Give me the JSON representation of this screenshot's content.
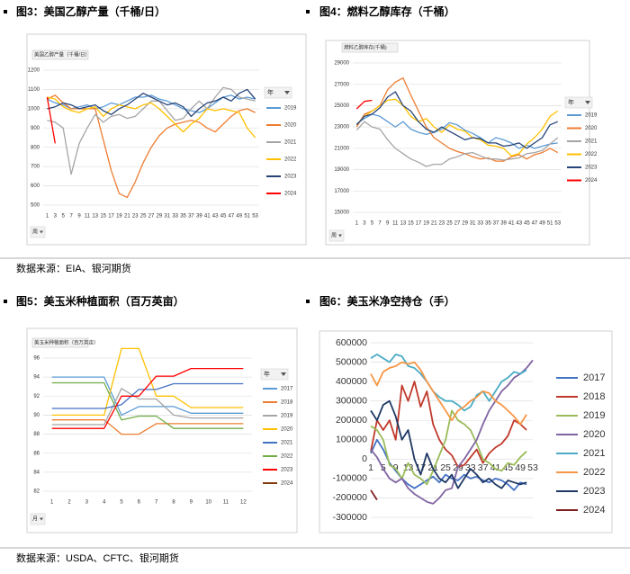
{
  "sources": [
    "数据来源：EIA、银河期货",
    "数据来源：USDA、CFTC、银河期货"
  ],
  "chart_data": [
    {
      "type": "line",
      "title": "图3：美国乙醇产量（千桶/日）",
      "subtitle": "美国乙醇产量（千桶/日）",
      "legend_title": "年",
      "filter_label": "周",
      "grid": true,
      "x": [
        1,
        3,
        5,
        7,
        9,
        11,
        13,
        15,
        17,
        19,
        21,
        23,
        25,
        27,
        29,
        31,
        33,
        35,
        37,
        39,
        41,
        43,
        45,
        47,
        49,
        51,
        53
      ],
      "xlim": [
        0,
        54
      ],
      "xticks": [
        1,
        3,
        5,
        7,
        9,
        11,
        13,
        15,
        17,
        19,
        21,
        23,
        25,
        27,
        29,
        31,
        33,
        35,
        37,
        39,
        41,
        43,
        45,
        47,
        49,
        51,
        53
      ],
      "ylim": [
        500,
        1200
      ],
      "yticks": [
        500,
        600,
        700,
        800,
        900,
        1000,
        1100,
        1200
      ],
      "series": [
        {
          "name": "2019",
          "color": "#5b9bd5",
          "values": [
            1050,
            1030,
            1020,
            1000,
            1010,
            1020,
            1000,
            1010,
            1030,
            1020,
            1040,
            1060,
            1060,
            1070,
            1050,
            1040,
            1020,
            1000,
            990,
            980,
            1000,
            1030,
            1060,
            1070,
            1050,
            1060,
            1050
          ]
        },
        {
          "name": "2020",
          "color": "#ed7d31",
          "values": [
            1050,
            1070,
            1030,
            1000,
            1000,
            1000,
            1000,
            840,
            680,
            560,
            540,
            620,
            720,
            800,
            860,
            900,
            920,
            930,
            940,
            930,
            900,
            880,
            920,
            960,
            990,
            1000,
            980
          ]
        },
        {
          "name": "2021",
          "color": "#a5a5a5",
          "values": [
            940,
            930,
            900,
            660,
            820,
            900,
            970,
            930,
            960,
            970,
            950,
            960,
            1000,
            1040,
            1040,
            990,
            940,
            950,
            1000,
            1040,
            1000,
            1060,
            1110,
            1100,
            1060,
            1050,
            1040
          ]
        },
        {
          "name": "2022",
          "color": "#ffc000",
          "values": [
            1060,
            1050,
            1010,
            990,
            980,
            1000,
            1010,
            960,
            1000,
            1020,
            1010,
            1000,
            1020,
            1030,
            1000,
            960,
            920,
            880,
            920,
            950,
            1000,
            990,
            1000,
            990,
            980,
            900,
            850
          ]
        },
        {
          "name": "2023",
          "color": "#264478",
          "values": [
            1000,
            1010,
            1030,
            1020,
            1000,
            1010,
            1020,
            990,
            970,
            1000,
            1020,
            1050,
            1080,
            1060,
            1040,
            1020,
            1030,
            1010,
            960,
            1000,
            1030,
            1040,
            1060,
            1040,
            1080,
            1100,
            1050
          ]
        },
        {
          "name": "2024",
          "color": "#ff0000",
          "values": [
            1060,
            820,
            null,
            null,
            null,
            null,
            null,
            null,
            null,
            null,
            null,
            null,
            null,
            null,
            null,
            null,
            null,
            null,
            null,
            null,
            null,
            null,
            null,
            null,
            null,
            null,
            null
          ]
        }
      ]
    },
    {
      "type": "line",
      "title": "图4：燃料乙醇库存（千桶）",
      "subtitle": "燃料乙醇库存(千桶)",
      "legend_title": "年",
      "filter_label": "周",
      "grid": true,
      "x": [
        1,
        3,
        5,
        7,
        9,
        11,
        13,
        15,
        17,
        19,
        21,
        23,
        25,
        27,
        29,
        31,
        33,
        35,
        37,
        39,
        41,
        43,
        45,
        47,
        49,
        51,
        53
      ],
      "xlim": [
        0,
        54
      ],
      "xticks": [
        1,
        3,
        5,
        7,
        9,
        11,
        13,
        15,
        17,
        19,
        21,
        23,
        25,
        27,
        29,
        31,
        33,
        35,
        37,
        39,
        41,
        43,
        45,
        47,
        49,
        51,
        53
      ],
      "ylim": [
        15000,
        29000
      ],
      "yticks": [
        15000,
        17000,
        19000,
        21000,
        23000,
        25000,
        27000,
        29000
      ],
      "series": [
        {
          "name": "2019",
          "color": "#5b9bd5",
          "values": [
            23300,
            23800,
            24200,
            24000,
            23500,
            23000,
            23500,
            22800,
            22500,
            22300,
            22500,
            22800,
            23400,
            23200,
            22700,
            22400,
            22000,
            21500,
            22000,
            21800,
            21500,
            21000,
            21300,
            21000,
            21200,
            21400,
            21500
          ]
        },
        {
          "name": "2020",
          "color": "#ed7d31",
          "values": [
            23000,
            24200,
            24500,
            25000,
            26500,
            27200,
            27600,
            26000,
            24500,
            23000,
            22000,
            21500,
            21000,
            20700,
            20500,
            20200,
            20000,
            20100,
            19800,
            19800,
            20200,
            20400,
            20000,
            20400,
            20600,
            21000,
            20600
          ]
        },
        {
          "name": "2021",
          "color": "#a5a5a5",
          "values": [
            22700,
            23500,
            23000,
            22800,
            21800,
            21000,
            20500,
            20000,
            19700,
            19300,
            19500,
            19500,
            20000,
            20200,
            20500,
            20600,
            20300,
            20000,
            20000,
            19900,
            20000,
            20100,
            20500,
            20600,
            20800,
            21400,
            22000
          ]
        },
        {
          "name": "2022",
          "color": "#ffc000",
          "values": [
            23200,
            24000,
            24500,
            25000,
            25500,
            25600,
            25000,
            24000,
            23500,
            23800,
            23000,
            22500,
            23200,
            22800,
            22600,
            22000,
            21800,
            21300,
            21200,
            21000,
            20300,
            20500,
            21400,
            22000,
            22800,
            24000,
            24500
          ]
        },
        {
          "name": "2023",
          "color": "#264478",
          "values": [
            23200,
            24000,
            24200,
            24800,
            25800,
            26300,
            25000,
            24500,
            23500,
            22800,
            22500,
            23000,
            22600,
            22200,
            21800,
            22000,
            21900,
            21500,
            21500,
            21200,
            21300,
            21500,
            21000,
            21500,
            22000,
            23200,
            23500
          ]
        },
        {
          "name": "2024",
          "color": "#ff0000",
          "values": [
            24700,
            25400,
            25500,
            null,
            null,
            null,
            null,
            null,
            null,
            null,
            null,
            null,
            null,
            null,
            null,
            null,
            null,
            null,
            null,
            null,
            null,
            null,
            null,
            null,
            null,
            null,
            null
          ]
        }
      ]
    },
    {
      "type": "line",
      "title": "图5：美玉米种植面积（百万英亩）",
      "subtitle": "美玉米种植面积（百万英亩）",
      "legend_title": "年",
      "filter_label": "月",
      "grid": true,
      "x": [
        1,
        2,
        3,
        4,
        5,
        6,
        7,
        8,
        9,
        10,
        11,
        12
      ],
      "xlim": [
        0.5,
        12.5
      ],
      "xticks": [
        1,
        2,
        3,
        4,
        5,
        6,
        7,
        8,
        9,
        10,
        11,
        12
      ],
      "ylim": [
        82,
        96
      ],
      "yticks": [
        82,
        84,
        86,
        88,
        90,
        92,
        94,
        96
      ],
      "series": [
        {
          "name": "2017",
          "color": "#5b9bd5",
          "values": [
            94,
            94,
            94,
            94,
            90,
            90.9,
            90.9,
            90.9,
            90.2,
            90.2,
            90.2,
            90.2
          ]
        },
        {
          "name": "2018",
          "color": "#ed7d31",
          "values": [
            89.5,
            89.5,
            89.5,
            89.5,
            88,
            88,
            89.1,
            89.1,
            89.1,
            89.1,
            89.1,
            89.1
          ]
        },
        {
          "name": "2019",
          "color": "#a5a5a5",
          "values": [
            89,
            89,
            89,
            89,
            92.8,
            91.7,
            91.7,
            90,
            89.7,
            89.7,
            89.7,
            89.7
          ]
        },
        {
          "name": "2020",
          "color": "#ffc000",
          "values": [
            90,
            90,
            90,
            90,
            97,
            97,
            92,
            92,
            90.8,
            90.8,
            90.8,
            90.8
          ]
        },
        {
          "name": "2021",
          "color": "#4472c4",
          "values": [
            90.7,
            90.7,
            90.7,
            90.7,
            91.1,
            92.7,
            92.7,
            93.3,
            93.3,
            93.3,
            93.3,
            93.3
          ]
        },
        {
          "name": "2022",
          "color": "#70ad47",
          "values": [
            93.4,
            93.4,
            93.4,
            93.4,
            89.5,
            89.9,
            89.9,
            88.6,
            88.6,
            88.6,
            88.6,
            88.6
          ]
        },
        {
          "name": "2023",
          "color": "#ff0000",
          "values": [
            88.6,
            88.6,
            88.6,
            88.6,
            92,
            92,
            94.1,
            94.1,
            94.9,
            94.9,
            94.9,
            94.9
          ]
        },
        {
          "name": "2024",
          "color": "#843c0c",
          "values": [
            null,
            null,
            null,
            null,
            null,
            null,
            null,
            null,
            null,
            null,
            null,
            null
          ]
        }
      ]
    },
    {
      "type": "line",
      "title": "图6：美玉米净空持仓（手）",
      "grid": true,
      "x_axis_at_zero": true,
      "x": [
        1,
        3,
        5,
        7,
        9,
        11,
        13,
        15,
        17,
        19,
        21,
        23,
        25,
        27,
        29,
        31,
        33,
        35,
        37,
        39,
        41,
        43,
        45,
        47,
        49,
        51,
        53
      ],
      "xlim": [
        1,
        53
      ],
      "xticks": [
        1,
        5,
        9,
        13,
        17,
        21,
        25,
        29,
        33,
        37,
        41,
        45,
        49,
        53
      ],
      "ylim": [
        -300000,
        600000
      ],
      "yticks": [
        -300000,
        -200000,
        -100000,
        0,
        100000,
        200000,
        300000,
        400000,
        500000,
        600000
      ],
      "series": [
        {
          "name": "2017",
          "color": "#4472c4",
          "values": [
            30000,
            100000,
            50000,
            -20000,
            -60000,
            -100000,
            -130000,
            -150000,
            -130000,
            -110000,
            -90000,
            -120000,
            -80000,
            -100000,
            -110000,
            -80000,
            -100000,
            -90000,
            -110000,
            -120000,
            -100000,
            -110000,
            -130000,
            -160000,
            -120000,
            -130000,
            null
          ]
        },
        {
          "name": "2018",
          "color": "#c0392b",
          "values": [
            40000,
            200000,
            150000,
            200000,
            100000,
            380000,
            300000,
            400000,
            270000,
            350000,
            180000,
            100000,
            50000,
            20000,
            -40000,
            -30000,
            10000,
            50000,
            -20000,
            30000,
            60000,
            80000,
            120000,
            200000,
            180000,
            150000,
            null
          ]
        },
        {
          "name": "2019",
          "color": "#9bbb59",
          "values": [
            170000,
            150000,
            100000,
            -30000,
            -50000,
            -100000,
            -20000,
            -80000,
            -100000,
            -130000,
            -60000,
            20000,
            100000,
            250000,
            200000,
            180000,
            150000,
            80000,
            0,
            -20000,
            -50000,
            -60000,
            -20000,
            -30000,
            10000,
            40000,
            null
          ]
        },
        {
          "name": "2020",
          "color": "#8064a2",
          "values": [
            50000,
            10000,
            -50000,
            -100000,
            -120000,
            -100000,
            -150000,
            -180000,
            -200000,
            -220000,
            -230000,
            -200000,
            -160000,
            -150000,
            -40000,
            0,
            50000,
            100000,
            180000,
            250000,
            300000,
            350000,
            380000,
            420000,
            440000,
            470000,
            510000
          ]
        },
        {
          "name": "2021",
          "color": "#4bacc6",
          "values": [
            520000,
            540000,
            520000,
            500000,
            540000,
            530000,
            480000,
            470000,
            440000,
            400000,
            350000,
            320000,
            300000,
            300000,
            280000,
            250000,
            270000,
            330000,
            350000,
            300000,
            350000,
            400000,
            420000,
            450000,
            440000,
            460000,
            null
          ]
        },
        {
          "name": "2022",
          "color": "#f79646",
          "values": [
            440000,
            380000,
            450000,
            470000,
            480000,
            500000,
            490000,
            500000,
            460000,
            400000,
            350000,
            300000,
            250000,
            200000,
            250000,
            270000,
            300000,
            320000,
            350000,
            340000,
            300000,
            280000,
            250000,
            220000,
            180000,
            230000,
            null
          ]
        },
        {
          "name": "2023",
          "color": "#1f3864",
          "values": [
            250000,
            200000,
            280000,
            300000,
            220000,
            100000,
            150000,
            0,
            -80000,
            30000,
            -50000,
            -100000,
            -120000,
            -80000,
            -150000,
            -100000,
            -50000,
            -80000,
            -120000,
            -100000,
            -130000,
            -150000,
            -110000,
            -120000,
            -130000,
            -120000,
            null
          ]
        },
        {
          "name": "2024",
          "color": "#7f1f1f",
          "values": [
            -160000,
            -210000,
            null,
            null,
            null,
            null,
            null,
            null,
            null,
            null,
            null,
            null,
            null,
            null,
            null,
            null,
            null,
            null,
            null,
            null,
            null,
            null,
            null,
            null,
            null,
            null,
            null
          ]
        }
      ]
    }
  ]
}
